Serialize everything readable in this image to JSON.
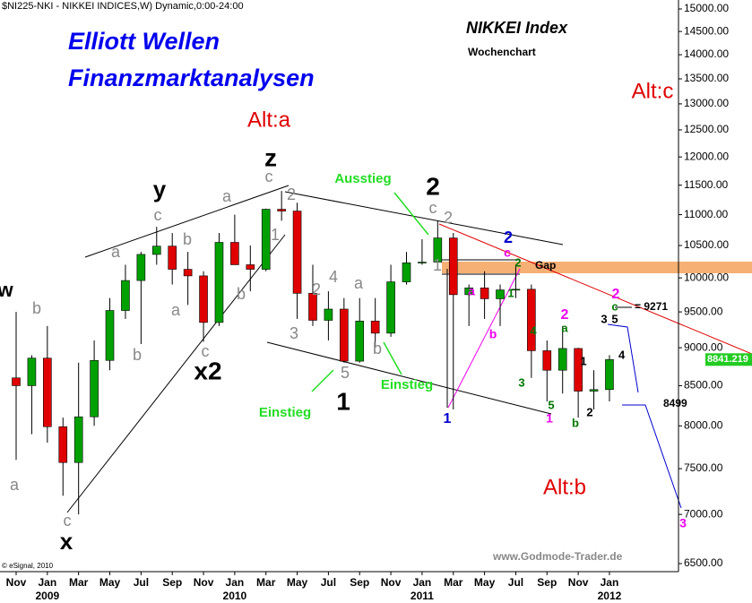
{
  "chart_data": {
    "type": "candlestick",
    "header": "$NI225-NKI - NIKKEI INDICES,W) Dynamic,0:00-24:00",
    "title": "NIKKEI Index",
    "subtitle": "Wochenchart",
    "brand_lines": [
      "Elliott Wellen",
      "Finanzmarktanalysen"
    ],
    "source": "www.Godmode-Trader.de",
    "copyright": "© eSignal, 2010",
    "categories": [
      "Nov",
      null,
      "Jan",
      null,
      "Mar",
      null,
      "May",
      null,
      "Jul",
      null,
      "Sep",
      null,
      "Nov",
      null,
      "Jan",
      null,
      "Mar",
      null,
      "May",
      null,
      "Jul",
      null,
      "Sep",
      null,
      "Nov",
      null,
      "Jan",
      null,
      "Mar",
      null,
      "May",
      null,
      "Jul",
      null,
      "Sep",
      null,
      "Nov",
      null,
      "Jan"
    ],
    "years": [
      null,
      null,
      "2009",
      null,
      null,
      null,
      null,
      null,
      null,
      null,
      null,
      null,
      null,
      null,
      "2010",
      null,
      null,
      null,
      null,
      null,
      null,
      null,
      null,
      null,
      null,
      null,
      "2011",
      null,
      null,
      null,
      null,
      null,
      null,
      null,
      null,
      null,
      null,
      null,
      "2012"
    ],
    "open": [
      8600,
      8500,
      8860,
      7990,
      7570,
      8110,
      8830,
      9520,
      9960,
      10360,
      10490,
      10130,
      10030,
      9350,
      10550,
      10200,
      10130,
      11090,
      11060,
      9770,
      9380,
      9540,
      8820,
      9370,
      9200,
      9940,
      10230,
      10240,
      10620,
      9750,
      9850,
      9690,
      9820,
      9830,
      8960,
      8700,
      8990,
      8430,
      8450
    ],
    "high": [
      9500,
      8900,
      9300,
      8100,
      8800,
      9100,
      9700,
      10200,
      10400,
      10800,
      10700,
      10400,
      10100,
      10700,
      11000,
      10500,
      11100,
      11400,
      11200,
      10200,
      9800,
      9700,
      9700,
      9700,
      10200,
      10400,
      10600,
      10900,
      10700,
      9900,
      10100,
      9900,
      10200,
      9900,
      9100,
      9300,
      9000,
      8700,
      8900
    ],
    "low": [
      7600,
      7900,
      7800,
      7200,
      7000,
      8000,
      8700,
      9400,
      9050,
      10200,
      9900,
      9600,
      9080,
      9300,
      10200,
      9800,
      10100,
      10900,
      9400,
      9300,
      9100,
      8800,
      8800,
      9000,
      9150,
      9900,
      10200,
      10200,
      8200,
      9300,
      9400,
      9300,
      9700,
      8600,
      8300,
      8400,
      8100,
      8200,
      8300
    ],
    "close": [
      8500,
      8860,
      7990,
      7570,
      8110,
      8830,
      9520,
      9960,
      10360,
      10490,
      10130,
      10030,
      9350,
      10550,
      10200,
      10130,
      11090,
      11060,
      9770,
      9380,
      9540,
      8820,
      9370,
      9200,
      9940,
      10230,
      10240,
      10620,
      9750,
      9850,
      9690,
      9820,
      9830,
      8960,
      8700,
      8990,
      8430,
      8450,
      8841.219
    ],
    "up_color": "#00a000",
    "down_color": "#e00000",
    "log_scale": true,
    "ylim": [
      6500,
      15000
    ],
    "yticks": [
      {
        "value": 6500,
        "label": "6500.00"
      },
      {
        "value": 7000,
        "label": "7000.00"
      },
      {
        "value": 7500,
        "label": "7500.00"
      },
      {
        "value": 8000,
        "label": "8000.00"
      },
      {
        "value": 8500,
        "label": "8500.00"
      },
      {
        "value": 9000,
        "label": "9000.00"
      },
      {
        "value": 9500,
        "label": "9500.00"
      },
      {
        "value": 10000,
        "label": "10000.00"
      },
      {
        "value": 10500,
        "label": "10500.00"
      },
      {
        "value": 11000,
        "label": "11000.00"
      },
      {
        "value": 11500,
        "label": "11500.00"
      },
      {
        "value": 12000,
        "label": "12000.00"
      },
      {
        "value": 12500,
        "label": "12500.00"
      },
      {
        "value": 13000,
        "label": "13000.00"
      },
      {
        "value": 13500,
        "label": "13500.00"
      },
      {
        "value": 14000,
        "label": "14000.00"
      },
      {
        "value": 14500,
        "label": "14500.00"
      },
      {
        "value": 15000,
        "label": "15000.00"
      }
    ],
    "last_price": {
      "value": 8841.219,
      "label": "8841.219",
      "color": "#22cc22"
    },
    "annotations": [
      {
        "text": "Alt:a",
        "color": "#e00000"
      },
      {
        "text": "Alt:b",
        "color": "#e00000"
      },
      {
        "text": "Alt:c",
        "color": "#e00000"
      },
      {
        "text": "z",
        "color": "#000000"
      },
      {
        "text": "y",
        "color": "#000000"
      },
      {
        "text": "x2",
        "color": "#000000"
      },
      {
        "text": "x",
        "color": "#000000"
      },
      {
        "text": "w",
        "color": "#000000"
      },
      {
        "text": "2",
        "color": "#000000"
      },
      {
        "text": "1",
        "color": "#000000"
      },
      {
        "text": "Ausstieg",
        "color": "#22dd22"
      },
      {
        "text": "Einstieg",
        "color": "#22dd22"
      },
      {
        "text": "Einstieg",
        "color": "#22dd22"
      },
      {
        "text": "a",
        "color": "#888888"
      },
      {
        "text": "b",
        "color": "#888888"
      },
      {
        "text": "c",
        "color": "#888888"
      },
      {
        "text": "a",
        "color": "#888888"
      },
      {
        "text": "b",
        "color": "#888888"
      },
      {
        "text": "c",
        "color": "#888888"
      },
      {
        "text": "b",
        "color": "#888888"
      },
      {
        "text": "a",
        "color": "#888888"
      },
      {
        "text": "a",
        "color": "#888888"
      },
      {
        "text": "c",
        "color": "#888888"
      },
      {
        "text": "b",
        "color": "#888888"
      },
      {
        "text": "c",
        "color": "#888888"
      },
      {
        "text": "2",
        "color": "#888888"
      },
      {
        "text": "1",
        "color": "#888888"
      },
      {
        "text": "2",
        "color": "#888888"
      },
      {
        "text": "4",
        "color": "#888888"
      },
      {
        "text": "3",
        "color": "#888888"
      },
      {
        "text": "5",
        "color": "#888888"
      },
      {
        "text": "a",
        "color": "#888888"
      },
      {
        "text": "b",
        "color": "#888888"
      },
      {
        "text": "c",
        "color": "#888888"
      },
      {
        "text": "2",
        "color": "#888888"
      },
      {
        "text": "1",
        "color": "#888888"
      },
      {
        "text": "2",
        "color": "#0000cc"
      },
      {
        "text": "1",
        "color": "#0000cc"
      },
      {
        "text": "c",
        "color": "#ee00ee"
      },
      {
        "text": "a",
        "color": "#ee00ee"
      },
      {
        "text": "b",
        "color": "#ee00ee"
      },
      {
        "text": "2",
        "color": "#ee00ee"
      },
      {
        "text": "1",
        "color": "#ee00ee"
      },
      {
        "text": "2",
        "color": "#ee00ee"
      },
      {
        "text": "3",
        "color": "#ee00ee"
      },
      {
        "text": "2",
        "color": "#007700"
      },
      {
        "text": "1",
        "color": "#007700"
      },
      {
        "text": "4",
        "color": "#007700"
      },
      {
        "text": "3",
        "color": "#007700"
      },
      {
        "text": "5",
        "color": "#007700"
      },
      {
        "text": "b",
        "color": "#007700"
      },
      {
        "text": "a",
        "color": "#007700"
      },
      {
        "text": "c",
        "color": "#007700"
      },
      {
        "text": "1",
        "color": "#000000"
      },
      {
        "text": "2",
        "color": "#000000"
      },
      {
        "text": "3",
        "color": "#000000"
      },
      {
        "text": "5",
        "color": "#000000"
      },
      {
        "text": "4",
        "color": "#000000"
      },
      {
        "text": "= 9271",
        "color": "#000000"
      },
      {
        "text": "8499",
        "color": "#000000"
      },
      {
        "text": "Gap",
        "color": "#000000"
      }
    ]
  }
}
